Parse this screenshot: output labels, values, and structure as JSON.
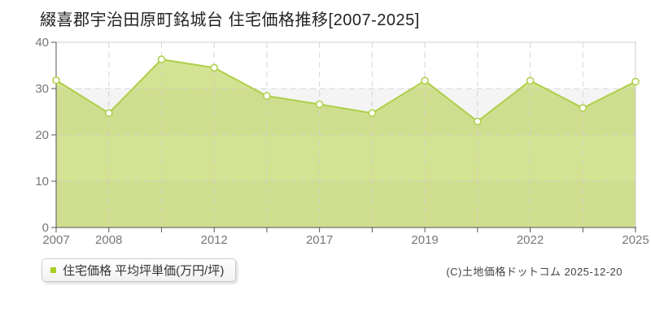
{
  "page": {
    "title": "綴喜郡宇治田原町銘城台 住宅価格推移[2007-2025]"
  },
  "legend": {
    "label": "住宅価格 平均坪単価(万円/坪)",
    "marker_color": "#a6ce26"
  },
  "footer": {
    "copyright": "(C)土地価格ドットコム 2025-12-20"
  },
  "chart_data": {
    "type": "area",
    "title": "綴喜郡宇治田原町銘城台 住宅価格推移[2007-2025]",
    "series_name": "住宅価格 平均坪単価(万円/坪)",
    "x_tick_labels": [
      "2007",
      "2008",
      "",
      "2012",
      "",
      "2017",
      "",
      "2019",
      "",
      "2022",
      "",
      "2025"
    ],
    "values": [
      31.8,
      24.7,
      36.3,
      34.5,
      28.4,
      26.6,
      24.7,
      31.7,
      22.9,
      31.7,
      25.8,
      31.5
    ],
    "ylabel": "平均坪単価(万円/坪)",
    "ylim": [
      0,
      40
    ],
    "yticks": [
      0,
      10,
      20,
      30,
      40
    ],
    "gray_bands": [
      [
        0,
        10
      ],
      [
        20,
        30
      ]
    ],
    "grid": true,
    "legend_position": "bottom-left",
    "colors": {
      "area_fill": "rgba(170,200,40,0.5)",
      "line": "#aecf4a",
      "marker_fill": "#ffffff",
      "marker_stroke": "#b0d050",
      "grid": "#cccccc",
      "band": "#f4f4f4",
      "axis": "#555555",
      "tick_label": "#777777",
      "border": "#cccccc"
    }
  }
}
